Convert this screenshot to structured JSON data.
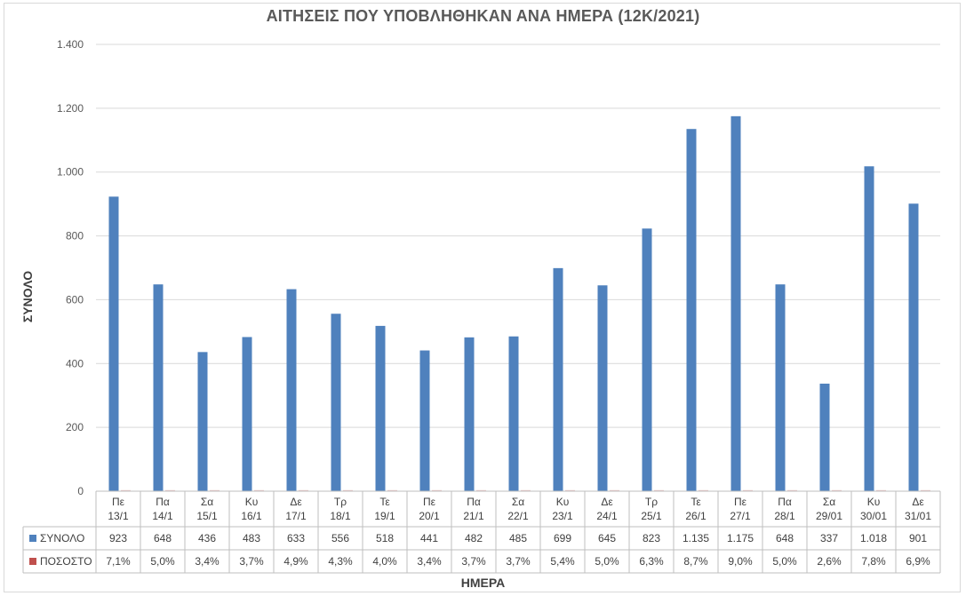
{
  "chart_data": {
    "type": "bar",
    "title": "ΑΙΤΗΣΕΙΣ ΠΟΥ ΥΠΟΒΛΗΘΗΚΑΝ ΑΝΑ ΗΜΕΡΑ (12Κ/2021)",
    "xlabel": "ΗΜΕΡΑ",
    "ylabel": "ΣΥΝΟΛΟ",
    "ylim": [
      0,
      1400
    ],
    "yticks": [
      0,
      200,
      400,
      600,
      800,
      1000,
      1200,
      1400
    ],
    "ytick_labels": [
      "0",
      "200",
      "400",
      "600",
      "800",
      "1.000",
      "1.200",
      "1.400"
    ],
    "grid": true,
    "legend_placement": "data-table-left",
    "categories": [
      {
        "day": "Πε",
        "date": "13/1"
      },
      {
        "day": "Πα",
        "date": "14/1"
      },
      {
        "day": "Σα",
        "date": "15/1"
      },
      {
        "day": "Κυ",
        "date": "16/1"
      },
      {
        "day": "Δε",
        "date": "17/1"
      },
      {
        "day": "Τρ",
        "date": "18/1"
      },
      {
        "day": "Τε",
        "date": "19/1"
      },
      {
        "day": "Πε",
        "date": "20/1"
      },
      {
        "day": "Πα",
        "date": "21/1"
      },
      {
        "day": "Σα",
        "date": "22/1"
      },
      {
        "day": "Κυ",
        "date": "23/1"
      },
      {
        "day": "Δε",
        "date": "24/1"
      },
      {
        "day": "Τρ",
        "date": "25/1"
      },
      {
        "day": "Τε",
        "date": "26/1"
      },
      {
        "day": "Πε",
        "date": "27/1"
      },
      {
        "day": "Πα",
        "date": "28/1"
      },
      {
        "day": "Σα",
        "date": "29/01"
      },
      {
        "day": "Κυ",
        "date": "30/01"
      },
      {
        "day": "Δε",
        "date": "31/01"
      }
    ],
    "series": [
      {
        "name": "ΣΥΝΟΛΟ",
        "color": "#4f81bd",
        "values": [
          923,
          648,
          436,
          483,
          633,
          556,
          518,
          441,
          482,
          485,
          699,
          645,
          823,
          1135,
          1175,
          648,
          337,
          1018,
          901
        ],
        "labels": [
          "923",
          "648",
          "436",
          "483",
          "633",
          "556",
          "518",
          "441",
          "482",
          "485",
          "699",
          "645",
          "823",
          "1.135",
          "1.175",
          "648",
          "337",
          "1.018",
          "901"
        ]
      },
      {
        "name": "ΠΟΣΟΣΤΟ",
        "color": "#c0504d",
        "values": [
          0.071,
          0.05,
          0.034,
          0.037,
          0.049,
          0.043,
          0.04,
          0.034,
          0.037,
          0.037,
          0.054,
          0.05,
          0.063,
          0.087,
          0.09,
          0.05,
          0.026,
          0.078,
          0.069
        ],
        "labels": [
          "7,1%",
          "5,0%",
          "3,4%",
          "3,7%",
          "4,9%",
          "4,3%",
          "4,0%",
          "3,4%",
          "3,7%",
          "3,7%",
          "5,4%",
          "5,0%",
          "6,3%",
          "8,7%",
          "9,0%",
          "5,0%",
          "2,6%",
          "7,8%",
          "6,9%"
        ]
      }
    ]
  }
}
